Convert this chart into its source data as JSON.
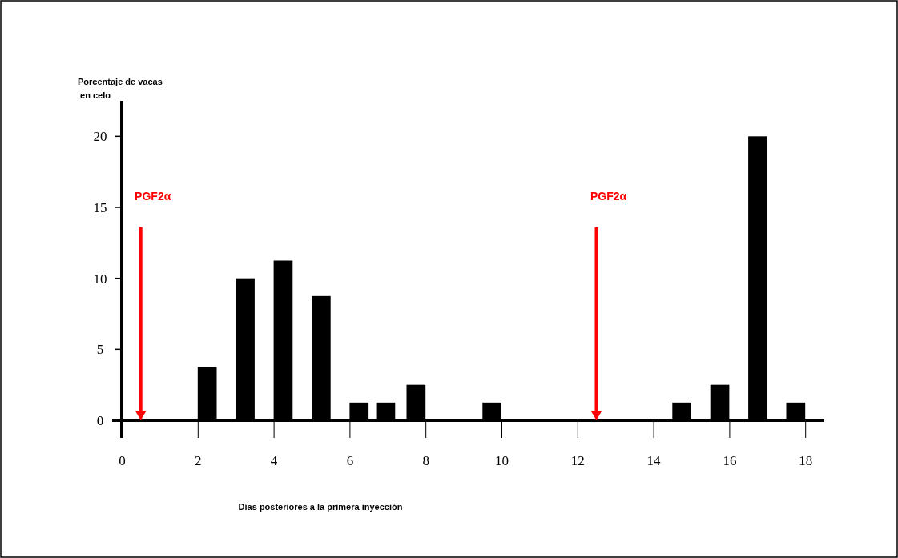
{
  "chart_data": {
    "type": "bar",
    "xlabel": "Días posteriores a la primera inyección",
    "ylabel": "Porcentaje de vacas\n en celo",
    "x": [
      2.25,
      3.25,
      4.25,
      5.25,
      6.25,
      6.95,
      7.75,
      9.75,
      14.75,
      15.75,
      16.75,
      17.75
    ],
    "values": [
      3.75,
      10,
      11.25,
      8.75,
      1.25,
      1.25,
      2.5,
      1.25,
      1.25,
      2.5,
      20,
      1.25
    ],
    "color": "#000000",
    "xlim": [
      0,
      18.5
    ],
    "xticks": [
      0,
      2,
      4,
      6,
      8,
      10,
      12,
      14,
      16,
      18
    ],
    "ylim": [
      0,
      22.5
    ],
    "yticks": [
      0,
      5,
      10,
      15,
      20
    ],
    "ref_lines": [
      {
        "axis": "x",
        "value": 0.5,
        "label": "PGF2α",
        "color": "#ff0000"
      },
      {
        "axis": "x",
        "value": 12.5,
        "label": "PGF2α",
        "color": "#ff0000"
      }
    ],
    "grid": false
  }
}
